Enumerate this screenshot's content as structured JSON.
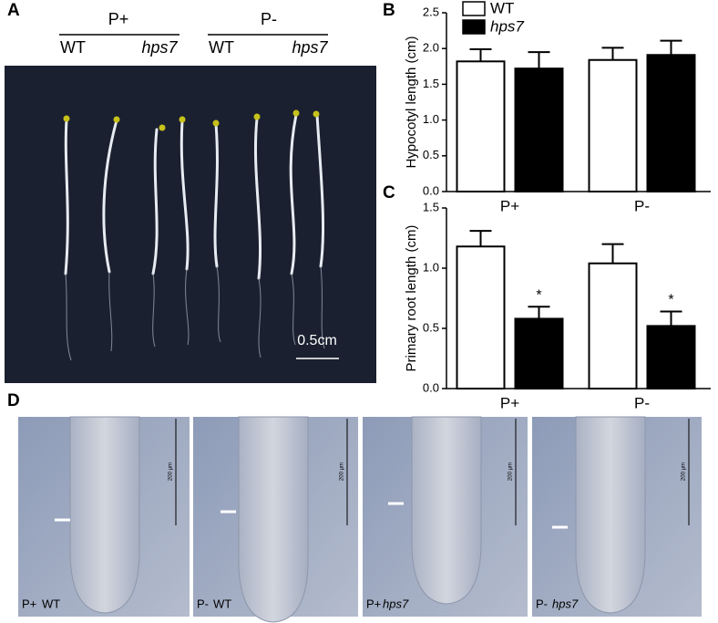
{
  "panel_labels": [
    "A",
    "B",
    "C",
    "D"
  ],
  "panel_a": {
    "groups": [
      {
        "condition": "P+",
        "genotypes": [
          "WT",
          "hps7"
        ]
      },
      {
        "condition": "P-",
        "genotypes": [
          "WT",
          "hps7"
        ]
      }
    ],
    "scale_bar": "0.5cm"
  },
  "panel_d": {
    "images": [
      {
        "condition": "P+",
        "genotype": "WT"
      },
      {
        "condition": "P-",
        "genotype": "WT"
      },
      {
        "condition": "P+",
        "genotype": "hps7"
      },
      {
        "condition": "P-",
        "genotype": "hps7"
      }
    ],
    "scale_bar": "200 µm"
  },
  "chart_data": [
    {
      "type": "bar",
      "ylabel": "Hypocotyl length (cm)",
      "categories": [
        "P+",
        "P-"
      ],
      "series": [
        {
          "name": "WT",
          "color": "#ffffff",
          "values": [
            1.82,
            1.84
          ],
          "errors": [
            0.17,
            0.17
          ]
        },
        {
          "name": "hps7",
          "color": "#000000",
          "values": [
            1.72,
            1.91
          ],
          "errors": [
            0.23,
            0.2
          ]
        }
      ],
      "ylim": [
        0,
        2.5
      ],
      "yticks": [
        {
          "value": 0,
          "label": "0.0"
        },
        {
          "value": 0.5,
          "label": "0.5"
        },
        {
          "value": 1,
          "label": "1.0"
        },
        {
          "value": 1.5,
          "label": "1.5"
        },
        {
          "value": 2,
          "label": "2.0"
        },
        {
          "value": 2.5,
          "label": "2.5"
        }
      ],
      "legend": "top-left"
    },
    {
      "type": "bar",
      "ylabel": "Primary root length (cm)",
      "categories": [
        "P+",
        "P-"
      ],
      "series": [
        {
          "color": "#ffffff",
          "values": [
            1.18,
            1.04
          ],
          "errors": [
            0.13,
            0.16
          ]
        },
        {
          "color": "#000000",
          "values": [
            0.58,
            0.52
          ],
          "errors": [
            0.1,
            0.12
          ]
        }
      ],
      "annotations": [
        "*",
        "*"
      ],
      "ylim": [
        0,
        1.5
      ],
      "yticks": [
        {
          "value": 0,
          "label": "0.0"
        },
        {
          "value": 0.5,
          "label": "0.5"
        },
        {
          "value": 1,
          "label": "1.0"
        },
        {
          "value": 1.5,
          "label": "1.5"
        }
      ]
    }
  ]
}
